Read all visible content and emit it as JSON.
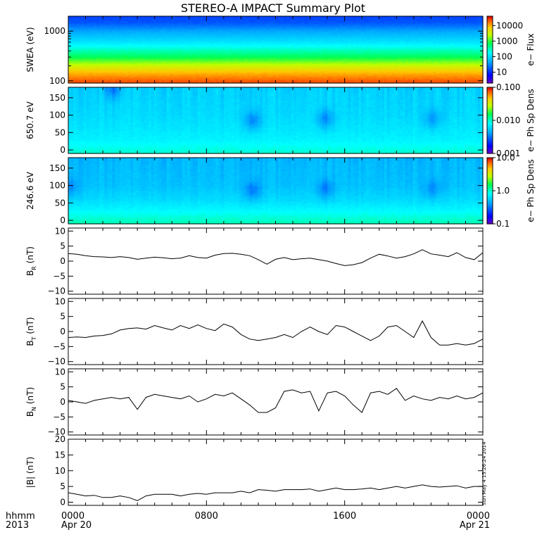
{
  "title": "STEREO-A IMPACT Summary Plot",
  "timestamp": "Sun May  4 15:26:24 2014",
  "time_axis": {
    "row1_label": "hhmm",
    "row2_label": "2013",
    "ticks": [
      {
        "h": 0,
        "top": "0000",
        "bottom": "Apr 20"
      },
      {
        "h": 8,
        "top": "0800",
        "bottom": ""
      },
      {
        "h": 16,
        "top": "1600",
        "bottom": ""
      },
      {
        "h": 24,
        "top": "0000",
        "bottom": "Apr 21"
      }
    ]
  },
  "chart_data": [
    {
      "type": "heatmap",
      "id": "swea",
      "ylabel": "SWEA (eV)",
      "yscale": "log",
      "ylim": [
        90,
        2000
      ],
      "yticks": [
        {
          "v": 100,
          "label": "100"
        },
        {
          "v": 1000,
          "label": "1000"
        }
      ],
      "colorbar": {
        "label": "e− Flux",
        "scale": "log",
        "range": [
          2,
          40000
        ],
        "ticks": [
          {
            "v": 10,
            "label": "10"
          },
          {
            "v": 100,
            "label": "100"
          },
          {
            "v": 1000,
            "label": "1000"
          },
          {
            "v": 10000,
            "label": "10000"
          }
        ]
      },
      "profile_y": [
        100,
        150,
        300,
        600,
        1000,
        1500,
        2000
      ],
      "profile_color": [
        0.94,
        0.85,
        0.6,
        0.42,
        0.32,
        0.22,
        0.2
      ]
    },
    {
      "type": "heatmap",
      "id": "pad650",
      "ylabel": "650.7 eV",
      "yscale": "linear",
      "ylim": [
        -10,
        180
      ],
      "yticks": [
        {
          "v": 0,
          "label": "0"
        },
        {
          "v": 50,
          "label": "50"
        },
        {
          "v": 100,
          "label": "100"
        },
        {
          "v": 150,
          "label": "150"
        }
      ],
      "colorbar": {
        "label": "e− Ph Sp Dens",
        "scale": "log",
        "range": [
          0.001,
          0.1
        ],
        "ticks": [
          {
            "v": 0.001,
            "label": "0.001"
          },
          {
            "v": 0.01,
            "label": "0.010"
          },
          {
            "v": 0.1,
            "label": "0.100"
          }
        ]
      },
      "profile_y": [
        -10,
        10,
        30,
        60,
        100,
        180
      ],
      "profile_color": [
        0.5,
        0.47,
        0.44,
        0.42,
        0.4,
        0.38
      ],
      "dips": [
        {
          "t": 10.7,
          "y": 85,
          "depth": 0.12
        },
        {
          "t": 14.9,
          "y": 90,
          "depth": 0.12
        },
        {
          "t": 21.1,
          "y": 90,
          "depth": 0.1
        },
        {
          "t": 2.6,
          "y": 175,
          "depth": 0.12
        }
      ]
    },
    {
      "type": "heatmap",
      "id": "pad246",
      "ylabel": "246.6 eV",
      "yscale": "linear",
      "ylim": [
        -10,
        180
      ],
      "yticks": [
        {
          "v": 0,
          "label": "0"
        },
        {
          "v": 50,
          "label": "50"
        },
        {
          "v": 100,
          "label": "100"
        },
        {
          "v": 150,
          "label": "150"
        }
      ],
      "colorbar": {
        "label": "e− Ph Sp Dens",
        "scale": "log",
        "range": [
          0.1,
          10
        ],
        "ticks": [
          {
            "v": 0.1,
            "label": "0.1"
          },
          {
            "v": 1,
            "label": "1.0"
          },
          {
            "v": 10,
            "label": "10.0"
          }
        ]
      },
      "profile_y": [
        -10,
        10,
        30,
        60,
        100,
        180
      ],
      "profile_color": [
        0.52,
        0.49,
        0.45,
        0.4,
        0.36,
        0.34
      ],
      "dips": [
        {
          "t": 0.1,
          "y": 95,
          "depth": 0.08
        },
        {
          "t": 10.7,
          "y": 85,
          "depth": 0.1
        },
        {
          "t": 14.9,
          "y": 90,
          "depth": 0.1
        },
        {
          "t": 21.1,
          "y": 90,
          "depth": 0.08
        }
      ]
    },
    {
      "type": "line",
      "id": "br",
      "ylabel": "B_R (nT)",
      "ylim": [
        -11,
        11
      ],
      "yticks": [
        {
          "v": -10,
          "label": "−10"
        },
        {
          "v": -5,
          "label": "−5"
        },
        {
          "v": 0,
          "label": "0"
        },
        {
          "v": 5,
          "label": "5"
        },
        {
          "v": 10,
          "label": "10"
        }
      ],
      "x_hours": [
        0,
        0.5,
        1,
        1.5,
        2,
        2.5,
        3,
        3.5,
        4,
        4.5,
        5,
        5.5,
        6,
        6.5,
        7,
        7.5,
        8,
        8.5,
        9,
        9.5,
        10,
        10.5,
        11,
        11.5,
        12,
        12.5,
        13,
        13.5,
        14,
        14.5,
        15,
        15.5,
        16,
        16.5,
        17,
        17.5,
        18,
        18.5,
        19,
        19.5,
        20,
        20.5,
        21,
        21.5,
        22,
        22.5,
        23,
        23.5,
        24
      ],
      "y": [
        2.5,
        2.3,
        1.8,
        1.5,
        1.4,
        1.2,
        1.5,
        1.2,
        0.6,
        1.0,
        1.3,
        1.1,
        0.8,
        1.0,
        1.8,
        1.2,
        1.0,
        2.0,
        2.5,
        2.6,
        2.3,
        1.8,
        0.5,
        -1.0,
        0.6,
        1.2,
        0.5,
        0.8,
        1.0,
        0.5,
        0.0,
        -0.8,
        -1.5,
        -1.2,
        -0.5,
        1.0,
        2.3,
        1.7,
        1.0,
        1.5,
        2.4,
        3.8,
        2.4,
        2.0,
        1.5,
        2.8,
        1.2,
        0.5,
        2.8
      ]
    },
    {
      "type": "line",
      "id": "bt",
      "ylabel": "B_T (nT)",
      "ylim": [
        -11,
        11
      ],
      "yticks": [
        {
          "v": -10,
          "label": "−10"
        },
        {
          "v": -5,
          "label": "−5"
        },
        {
          "v": 0,
          "label": "0"
        },
        {
          "v": 5,
          "label": "5"
        },
        {
          "v": 10,
          "label": "10"
        }
      ],
      "x_hours": [
        0,
        0.5,
        1,
        1.5,
        2,
        2.5,
        3,
        3.5,
        4,
        4.5,
        5,
        5.5,
        6,
        6.5,
        7,
        7.5,
        8,
        8.5,
        9,
        9.5,
        10,
        10.5,
        11,
        11.5,
        12,
        12.5,
        13,
        13.5,
        14,
        14.5,
        15,
        15.5,
        16,
        16.5,
        17,
        17.5,
        18,
        18.5,
        19,
        19.5,
        20,
        20.5,
        21,
        21.5,
        22,
        22.5,
        23,
        23.5,
        24
      ],
      "y": [
        -2.0,
        -1.8,
        -2.0,
        -1.5,
        -1.3,
        -0.8,
        0.5,
        1.0,
        1.2,
        0.8,
        2.0,
        1.2,
        0.5,
        2.0,
        1.0,
        2.2,
        1.0,
        0.3,
        2.5,
        1.5,
        -1.0,
        -2.5,
        -3.0,
        -2.5,
        -2.0,
        -1.0,
        -2.0,
        0.0,
        1.5,
        0.0,
        -1.0,
        2.0,
        1.5,
        0.0,
        -1.5,
        -3.0,
        -1.5,
        1.5,
        2.0,
        0.0,
        -2.0,
        3.5,
        -2.0,
        -4.5,
        -4.5,
        -4.0,
        -4.5,
        -4.0,
        -2.5
      ]
    },
    {
      "type": "line",
      "id": "bn",
      "ylabel": "B_N (nT)",
      "ylim": [
        -11,
        11
      ],
      "yticks": [
        {
          "v": -10,
          "label": "−10"
        },
        {
          "v": -5,
          "label": "−5"
        },
        {
          "v": 0,
          "label": "0"
        },
        {
          "v": 5,
          "label": "5"
        },
        {
          "v": 10,
          "label": "10"
        }
      ],
      "x_hours": [
        0,
        0.5,
        1,
        1.5,
        2,
        2.5,
        3,
        3.5,
        4,
        4.5,
        5,
        5.5,
        6,
        6.5,
        7,
        7.5,
        8,
        8.5,
        9,
        9.5,
        10,
        10.5,
        11,
        11.5,
        12,
        12.5,
        13,
        13.5,
        14,
        14.5,
        15,
        15.5,
        16,
        16.5,
        17,
        17.5,
        18,
        18.5,
        19,
        19.5,
        20,
        20.5,
        21,
        21.5,
        22,
        22.5,
        23,
        23.5,
        24
      ],
      "y": [
        0.5,
        0.0,
        -0.5,
        0.5,
        1.0,
        1.5,
        1.0,
        1.5,
        -2.5,
        1.5,
        2.5,
        2.0,
        1.5,
        1.0,
        2.0,
        0.0,
        1.0,
        2.5,
        2.0,
        3.0,
        1.0,
        -1.0,
        -3.5,
        -3.5,
        -2.0,
        3.5,
        4.0,
        3.0,
        3.5,
        -3.0,
        3.0,
        3.5,
        2.0,
        -1.0,
        -3.5,
        3.0,
        3.5,
        2.5,
        4.5,
        0.5,
        2.0,
        1.0,
        0.5,
        1.5,
        1.0,
        2.0,
        1.0,
        1.5,
        3.0
      ]
    },
    {
      "type": "line",
      "id": "bmag",
      "ylabel": "|B| (nT)",
      "ylim": [
        -1,
        20
      ],
      "yticks": [
        {
          "v": 0,
          "label": "0"
        },
        {
          "v": 5,
          "label": "5"
        },
        {
          "v": 10,
          "label": "10"
        },
        {
          "v": 15,
          "label": "15"
        },
        {
          "v": 20,
          "label": "20"
        }
      ],
      "x_hours": [
        0,
        0.5,
        1,
        1.5,
        2,
        2.5,
        3,
        3.5,
        4,
        4.5,
        5,
        5.5,
        6,
        6.5,
        7,
        7.5,
        8,
        8.5,
        9,
        9.5,
        10,
        10.5,
        11,
        11.5,
        12,
        12.5,
        13,
        13.5,
        14,
        14.5,
        15,
        15.5,
        16,
        16.5,
        17,
        17.5,
        18,
        18.5,
        19,
        19.5,
        20,
        20.5,
        21,
        21.5,
        22,
        22.5,
        23,
        23.5,
        24
      ],
      "y": [
        3.0,
        2.5,
        2.0,
        2.2,
        1.5,
        1.5,
        2.0,
        1.5,
        0.5,
        2.0,
        2.5,
        2.5,
        2.5,
        2.0,
        2.5,
        2.8,
        2.5,
        3.0,
        3.0,
        3.0,
        3.5,
        3.0,
        4.0,
        3.8,
        3.5,
        4.0,
        4.0,
        4.0,
        4.2,
        3.5,
        4.0,
        4.5,
        4.0,
        4.0,
        4.2,
        4.5,
        4.0,
        4.5,
        5.0,
        4.5,
        5.0,
        5.5,
        5.0,
        4.8,
        5.0,
        5.2,
        4.5,
        5.0,
        5.0
      ]
    }
  ]
}
